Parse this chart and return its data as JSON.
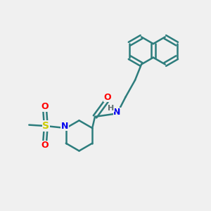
{
  "bg_color": "#f0f0f0",
  "bond_color": "#2d7d7d",
  "bond_width": 1.8,
  "atom_colors": {
    "N": "#0000ee",
    "O": "#ff0000",
    "S": "#cccc00",
    "H": "#607070",
    "C": "#2d7d7d"
  },
  "font_size": 9,
  "fig_size": [
    3.0,
    3.0
  ],
  "dpi": 100
}
